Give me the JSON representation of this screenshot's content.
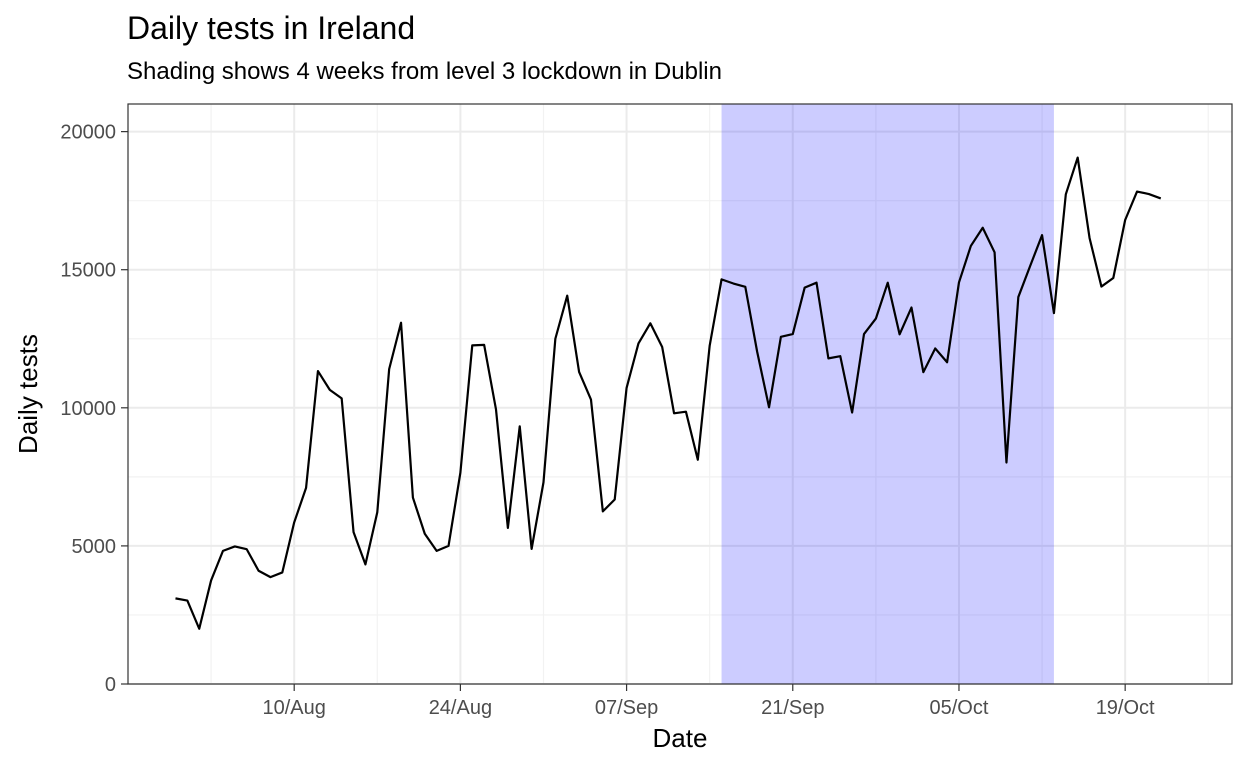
{
  "chart_data": {
    "type": "line",
    "title": "Daily tests in Ireland",
    "subtitle": "Shading shows 4 weeks from level 3 lockdown in Dublin",
    "xlabel": "Date",
    "ylabel": "Daily tests",
    "x_start": "2020-07-31",
    "x_step": "1 day",
    "x_range": [
      "2020-07-27",
      "2020-10-28"
    ],
    "ylim": [
      0,
      21000
    ],
    "y_ticks": [
      0,
      5000,
      10000,
      15000,
      20000
    ],
    "x_ticks": [
      {
        "date": "2020-08-10",
        "label": "10/Aug"
      },
      {
        "date": "2020-08-24",
        "label": "24/Aug"
      },
      {
        "date": "2020-09-07",
        "label": "07/Sep"
      },
      {
        "date": "2020-09-21",
        "label": "21/Sep"
      },
      {
        "date": "2020-10-05",
        "label": "05/Oct"
      },
      {
        "date": "2020-10-19",
        "label": "19/Oct"
      }
    ],
    "grid": true,
    "shading": {
      "start": "2020-09-15",
      "end": "2020-10-13",
      "color": "#ccccff"
    },
    "series": [
      {
        "color": "#000000",
        "values": [
          3100,
          3020,
          2000,
          3750,
          4820,
          4980,
          4880,
          4100,
          3870,
          4040,
          5850,
          7100,
          11330,
          10650,
          10340,
          5500,
          4330,
          6220,
          11400,
          13080,
          6750,
          5440,
          4820,
          5000,
          7650,
          12260,
          12280,
          9940,
          5650,
          9330,
          4890,
          7300,
          12500,
          14060,
          11300,
          10300,
          6250,
          6680,
          10720,
          12330,
          13060,
          12200,
          9800,
          9860,
          8120,
          12250,
          14650,
          14500,
          14380,
          12030,
          10020,
          12570,
          12670,
          14350,
          14530,
          11790,
          11870,
          9830,
          12670,
          13230,
          14530,
          12660,
          13630,
          11290,
          12150,
          11650,
          14540,
          15860,
          16520,
          15630,
          8020,
          14010,
          15140,
          16250,
          13430,
          17730,
          19060,
          16150,
          14390,
          14700,
          16800,
          17830,
          17740,
          17580
        ]
      }
    ]
  }
}
